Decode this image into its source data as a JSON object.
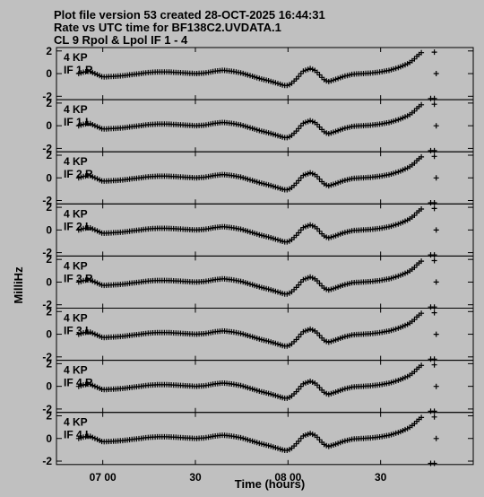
{
  "header": {
    "line1": "Plot file version 53  created 28-OCT-2025 16:44:31",
    "line2": "Rate vs UTC time for BF138C2.UVDATA.1",
    "line3": "CL 9  Rpol & Lpol  IF 1 - 4"
  },
  "axes": {
    "xlabel": "Time (hours)",
    "ylabel": "MilliHz"
  },
  "chart_data": {
    "type": "scatter",
    "marker": "plus",
    "x_unit": "hours (UTC)",
    "xlim": [
      6.75,
      9.0
    ],
    "ylim": [
      -2.3,
      2.3
    ],
    "x_ticks": [
      7.0,
      7.5,
      8.0,
      8.5
    ],
    "x_tick_labels": [
      "07 00",
      "30",
      "08 00",
      "30"
    ],
    "y_ticks": [
      -2,
      0,
      2
    ],
    "y_tick_labels": [
      "-2",
      "0",
      "2"
    ],
    "panel_label_prefix": "4 KP",
    "panels": [
      {
        "label": "IF 1 R"
      },
      {
        "label": "IF 1 L"
      },
      {
        "label": "IF 2 R"
      },
      {
        "label": "IF 2 L"
      },
      {
        "label": "IF 3 R"
      },
      {
        "label": "IF 3 L"
      },
      {
        "label": "IF 4 R"
      },
      {
        "label": "IF 4 L"
      }
    ],
    "curve_x": [
      6.87,
      6.9,
      6.93,
      7.0,
      7.05,
      7.1,
      7.15,
      7.2,
      7.25,
      7.3,
      7.35,
      7.4,
      7.45,
      7.5,
      7.55,
      7.6,
      7.65,
      7.7,
      7.75,
      7.8,
      7.85,
      7.9,
      7.95,
      7.98,
      8.0,
      8.02,
      8.05,
      8.08,
      8.12,
      8.15,
      8.18,
      8.2,
      8.22,
      8.25,
      8.3,
      8.35,
      8.4,
      8.45,
      8.5,
      8.55,
      8.6,
      8.65,
      8.68,
      8.7,
      8.72
    ],
    "curve_y": [
      0.0,
      0.15,
      0.2,
      -0.3,
      -0.25,
      -0.2,
      -0.1,
      0.0,
      0.1,
      0.15,
      0.15,
      0.1,
      0.05,
      0.0,
      0.05,
      0.2,
      0.3,
      0.2,
      0.05,
      -0.2,
      -0.45,
      -0.65,
      -0.9,
      -1.05,
      -1.05,
      -0.85,
      -0.4,
      0.2,
      0.45,
      0.25,
      -0.3,
      -0.6,
      -0.7,
      -0.55,
      -0.25,
      -0.05,
      0.0,
      0.05,
      0.15,
      0.3,
      0.55,
      0.9,
      1.25,
      1.6,
      1.85
    ],
    "outliers": [
      {
        "x": 8.79,
        "y": 1.9
      },
      {
        "x": 8.8,
        "y": 0.0
      },
      {
        "x": 8.77,
        "y": -2.2
      },
      {
        "x": 8.79,
        "y": -2.2
      }
    ]
  }
}
